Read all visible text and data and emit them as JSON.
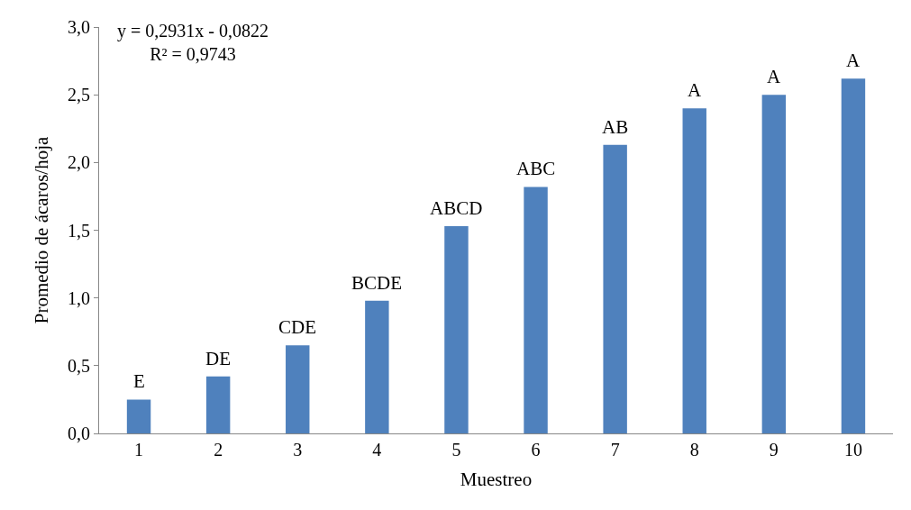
{
  "chart_data": {
    "type": "bar",
    "xlabel": "Muestreo",
    "ylabel": "Promedio de ácaros/hoja",
    "categories": [
      "1",
      "2",
      "3",
      "4",
      "5",
      "6",
      "7",
      "8",
      "9",
      "10"
    ],
    "series": [
      {
        "color": "#4f81bd",
        "values": [
          0.25,
          0.42,
          0.65,
          0.98,
          1.53,
          1.82,
          2.13,
          2.4,
          2.5,
          2.62
        ]
      }
    ],
    "ylim": [
      0,
      3
    ],
    "yticks": [
      {
        "value": 0,
        "label": "0,0"
      },
      {
        "value": 0.5,
        "label": "0,5"
      },
      {
        "value": 1,
        "label": "1,0"
      },
      {
        "value": 1.5,
        "label": "1,5"
      },
      {
        "value": 2,
        "label": "2,0"
      },
      {
        "value": 2.5,
        "label": "2,5"
      },
      {
        "value": 3,
        "label": "3,0"
      }
    ],
    "legend": false,
    "annotations": [
      "y = 0,2931x - 0,0822\nR² = 0,9743",
      {
        "text": "E",
        "x": "1",
        "y": 0.25
      },
      {
        "text": "DE",
        "x": "2",
        "y": 0.42
      },
      {
        "text": "CDE",
        "x": "3",
        "y": 0.65
      },
      {
        "text": "BCDE",
        "x": "4",
        "y": 0.98
      },
      {
        "text": "ABCD",
        "x": "5",
        "y": 1.53
      },
      {
        "text": "ABC",
        "x": "6",
        "y": 1.82
      },
      {
        "text": "AB",
        "x": "7",
        "y": 2.13
      },
      {
        "text": "A",
        "x": "8",
        "y": 2.4
      },
      {
        "text": "A",
        "x": "9",
        "y": 2.5
      },
      {
        "text": "A",
        "x": "10",
        "y": 2.62
      }
    ]
  }
}
